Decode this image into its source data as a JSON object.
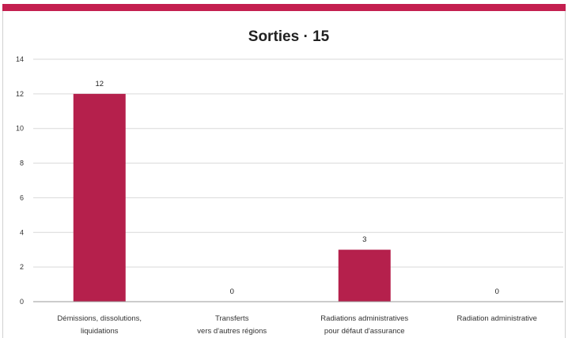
{
  "chart_data": {
    "type": "bar",
    "title": "Sorties · 15",
    "xlabel": "",
    "ylabel": "",
    "ylim": [
      0,
      14
    ],
    "yticks": [
      0,
      2,
      4,
      6,
      8,
      10,
      12,
      14
    ],
    "categories": [
      [
        "Démissions, dissolutions,",
        "liquidations"
      ],
      [
        "Transferts",
        "vers d'autres régions"
      ],
      [
        "Radiations administratives",
        "pour défaut d'assurance"
      ],
      [
        "Radiation administrative"
      ]
    ],
    "values": [
      12,
      0,
      3,
      0
    ],
    "grid": true,
    "legend": "none",
    "colors": {
      "bar": "#b5204c",
      "accent": "#c41f4f",
      "grid": "#d9d9d9",
      "axis": "#999999"
    }
  }
}
